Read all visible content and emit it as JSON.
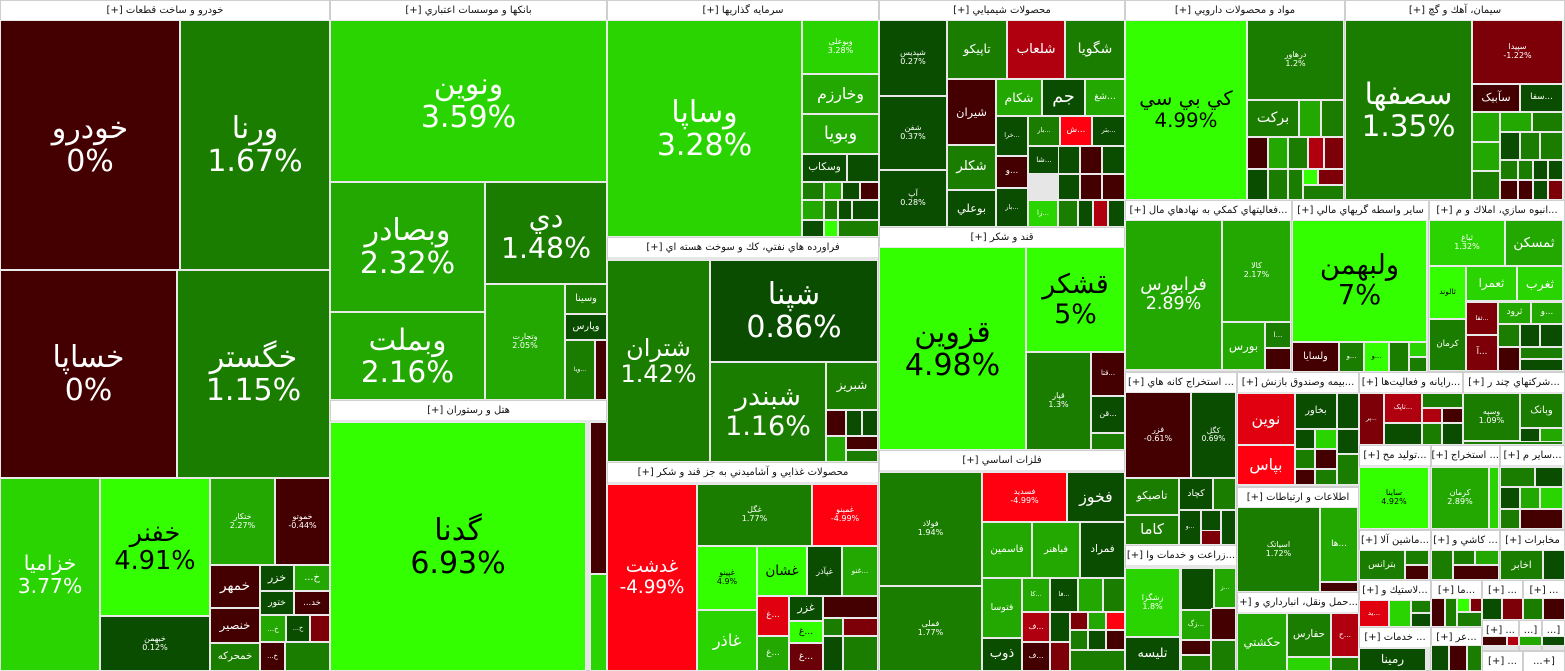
{
  "sectors": [
    {
      "title": "خودرو و ساخت قطعات [+]",
      "tiles": [
        {
          "name": "خودرو",
          "pct": "0%",
          "color": "#440000"
        },
        {
          "name": "ورنا",
          "pct": "1.67%",
          "color": "#1b7d00"
        },
        {
          "name": "خساپا",
          "pct": "0%",
          "color": "#440000"
        },
        {
          "name": "خگستر",
          "pct": "1.15%",
          "color": "#1b7d00"
        },
        {
          "name": "خزامیا",
          "pct": "3.77%",
          "color": "#2ad400"
        },
        {
          "name": "خفنر",
          "pct": "4.91%",
          "color": "#33ff00"
        },
        {
          "name": "خبهمن",
          "pct": "0.12%",
          "color": "#0a4d00"
        },
        {
          "name": "ختکار",
          "pct": "2.27%",
          "color": "#22a800"
        },
        {
          "name": "خموتو",
          "pct": "-0.44%",
          "color": "#440000"
        },
        {
          "name": "خمهر",
          "pct": "",
          "color": "#440000"
        },
        {
          "name": "خزر",
          "pct": "",
          "color": "#0a4d00"
        },
        {
          "name": "خ...",
          "pct": "",
          "color": "#22a800"
        },
        {
          "name": "ختور",
          "pct": "",
          "color": "#0a4d00"
        },
        {
          "name": "خد...",
          "pct": "",
          "color": "#440000"
        },
        {
          "name": "خنصیر",
          "pct": "",
          "color": "#440000"
        },
        {
          "name": "خ...",
          "pct": "",
          "color": "#22a800"
        },
        {
          "name": "خ...",
          "pct": "",
          "color": "#0a4d00"
        },
        {
          "name": "خمحرکه",
          "pct": "",
          "color": "#1b7d00"
        },
        {
          "name": "خ...",
          "pct": "",
          "color": "#440000"
        }
      ]
    },
    {
      "title": "بانکها و موسسات اعتباري [+]",
      "tiles": [
        {
          "name": "ونوین",
          "pct": "3.59%",
          "color": "#2ad400"
        },
        {
          "name": "وبصادر",
          "pct": "2.32%",
          "color": "#22a800"
        },
        {
          "name": "دي",
          "pct": "1.48%",
          "color": "#1b7d00"
        },
        {
          "name": "وبملت",
          "pct": "2.16%",
          "color": "#22a800"
        },
        {
          "name": "وتجارت",
          "pct": "2.05%",
          "color": "#22a800"
        },
        {
          "name": "وسینا",
          "pct": "",
          "color": "#1b7d00"
        },
        {
          "name": "وپارس",
          "pct": "",
          "color": "#0a4d00"
        },
        {
          "name": "...ویا",
          "pct": "",
          "color": "#1b7d00"
        }
      ]
    },
    {
      "title": "هتل و رستوران [+]",
      "tiles": [
        {
          "name": "گدنا",
          "pct": "6.93%",
          "color": "#33ff00"
        }
      ]
    },
    {
      "title": "سرمایه گذاریها [+]",
      "tiles": [
        {
          "name": "وساپا",
          "pct": "3.28%",
          "color": "#2ad400"
        },
        {
          "name": "وبوعلی",
          "pct": "3.28%",
          "color": "#2ad400"
        },
        {
          "name": "وخارزم",
          "pct": "",
          "color": "#22a800"
        },
        {
          "name": "وبویا",
          "pct": "",
          "color": "#22a800"
        },
        {
          "name": "وسکاب",
          "pct": "",
          "color": "#0a4d00"
        }
      ]
    },
    {
      "title": "فراورده هاي نفتي، كك و سوخت هسته اي [+]",
      "tiles": [
        {
          "name": "شتران",
          "pct": "1.42%",
          "color": "#1b7d00"
        },
        {
          "name": "شپنا",
          "pct": "0.86%",
          "color": "#0a4d00"
        },
        {
          "name": "شبندر",
          "pct": "1.16%",
          "color": "#1b7d00"
        },
        {
          "name": "شبریز",
          "pct": "",
          "color": "#1b7d00"
        }
      ]
    },
    {
      "title": "محصولات غذايي و آشاميدني به جز قند و شكر [+]",
      "tiles": [
        {
          "name": "غدشت",
          "pct": "-4.99%",
          "color": "#ff0010"
        },
        {
          "name": "غگل",
          "pct": "1.77%",
          "color": "#1b7d00"
        },
        {
          "name": "غمینو",
          "pct": "-4.99%",
          "color": "#ff0010"
        },
        {
          "name": "غپینو",
          "pct": "4.9%",
          "color": "#33ff00"
        },
        {
          "name": "غشان",
          "pct": "",
          "color": "#33ff00"
        },
        {
          "name": "غپآذر",
          "pct": "",
          "color": "#0a4d00"
        },
        {
          "name": "...غنو",
          "pct": "",
          "color": "#22a800"
        },
        {
          "name": "غاذر",
          "pct": "",
          "color": "#2ad400"
        },
        {
          "name": "...غ",
          "pct": "",
          "color": "#e00010"
        },
        {
          "name": "غزر",
          "pct": "",
          "color": "#0a4d00"
        },
        {
          "name": "...غ",
          "pct": "",
          "color": "#33ff00"
        },
        {
          "name": "...غ",
          "pct": "",
          "color": "#22a800"
        },
        {
          "name": "...غ",
          "pct": "",
          "color": "#6a0008"
        }
      ]
    },
    {
      "title": "محصولات شيميايي [+]",
      "tiles": [
        {
          "name": "شپدیس",
          "pct": "0.27%",
          "color": "#0a4d00"
        },
        {
          "name": "شفن",
          "pct": "0.37%",
          "color": "#0a4d00"
        },
        {
          "name": "آپ",
          "pct": "0.28%",
          "color": "#0a4d00"
        },
        {
          "name": "تاپیکو",
          "pct": "",
          "color": "#1b7d00"
        },
        {
          "name": "شلعاب",
          "pct": "",
          "color": "#b00010"
        },
        {
          "name": "شگویا",
          "pct": "",
          "color": "#1b7d00"
        },
        {
          "name": "شیران",
          "pct": "",
          "color": "#440000"
        },
        {
          "name": "شکام",
          "pct": "",
          "color": "#22a800"
        },
        {
          "name": "جم",
          "pct": "",
          "color": "#0a4d00"
        },
        {
          "name": "...شغ",
          "pct": "",
          "color": "#22a800"
        },
        {
          "name": "...خرا",
          "pct": "",
          "color": "#0a4d00"
        },
        {
          "name": "...بار",
          "pct": "",
          "color": "#1b7d00"
        },
        {
          "name": "...ش",
          "pct": "",
          "color": "#ff0010"
        },
        {
          "name": "...بتر",
          "pct": "",
          "color": "#0a4d00"
        },
        {
          "name": "شکلر",
          "pct": "",
          "color": "#1b7d00"
        },
        {
          "name": "...شا",
          "pct": "",
          "color": "#0a4d00"
        },
        {
          "name": "...و",
          "pct": "",
          "color": "#440000"
        },
        {
          "name": "بوعلي",
          "pct": "",
          "color": "#0a4d00"
        },
        {
          "name": "...بار",
          "pct": "",
          "color": "#0a4d00"
        },
        {
          "name": "...زا",
          "pct": "",
          "color": "#2ad400"
        }
      ]
    },
    {
      "title": "قند و شكر [+]",
      "tiles": [
        {
          "name": "قزوین",
          "pct": "4.98%",
          "color": "#33ff00"
        },
        {
          "name": "قشکر",
          "pct": "5%",
          "color": "#33ff00"
        },
        {
          "name": "قپار",
          "pct": "1.3%",
          "color": "#1b7d00"
        },
        {
          "name": "...قتا",
          "pct": "",
          "color": "#440000"
        },
        {
          "name": "...قن",
          "pct": "",
          "color": "#0a4d00"
        }
      ]
    },
    {
      "title": "فلزات اساسي [+]",
      "tiles": [
        {
          "name": "فولاد",
          "pct": "1.94%",
          "color": "#1b7d00"
        },
        {
          "name": "فملی",
          "pct": "1.77%",
          "color": "#1b7d00"
        },
        {
          "name": "فسدید",
          "pct": "-4.99%",
          "color": "#ff0010"
        },
        {
          "name": "فخوز",
          "pct": "",
          "color": "#0a4d00"
        },
        {
          "name": "فاسمین",
          "pct": "",
          "color": "#22a800"
        },
        {
          "name": "فباهنر",
          "pct": "",
          "color": "#22a800"
        },
        {
          "name": "فمراد",
          "pct": "",
          "color": "#0a4d00"
        },
        {
          "name": "فتوسا",
          "pct": "",
          "color": "#22a800"
        },
        {
          "name": "...کا",
          "pct": "",
          "color": "#22a800"
        },
        {
          "name": "...فا",
          "pct": "",
          "color": "#0a4d00"
        },
        {
          "name": "...ف",
          "pct": "",
          "color": "#b00010"
        },
        {
          "name": "ذوب",
          "pct": "",
          "color": "#0a4d00"
        },
        {
          "name": "...ف",
          "pct": "",
          "color": "#440000"
        }
      ]
    },
    {
      "title": "مواد و محصولات دارويي [+]",
      "tiles": [
        {
          "name": "كي بي سي",
          "pct": "4.99%",
          "color": "#33ff00"
        },
        {
          "name": "درهاور",
          "pct": "1.2%",
          "color": "#1b7d00"
        },
        {
          "name": "برکت",
          "pct": "",
          "color": "#1b7d00"
        }
      ]
    },
    {
      "title": "سيمان، آهك و گچ [+]",
      "tiles": [
        {
          "name": "سصفها",
          "pct": "1.35%",
          "color": "#1b7d00"
        },
        {
          "name": "سپیدا",
          "pct": "-1.22%",
          "color": "#7d0008"
        },
        {
          "name": "سآبیک",
          "pct": "",
          "color": "#440000"
        },
        {
          "name": "...سفا",
          "pct": "",
          "color": "#0a4d00"
        }
      ]
    },
    {
      "title": "...فعاليتهاي كمكي به نهادهاي مال [+]",
      "tiles": [
        {
          "name": "فرابورس",
          "pct": "2.89%",
          "color": "#22a800"
        },
        {
          "name": "کالا",
          "pct": "2.17%",
          "color": "#22a800"
        },
        {
          "name": "بورس",
          "pct": "",
          "color": "#22a800"
        },
        {
          "name": "...ا",
          "pct": "",
          "color": "#1b7d00"
        }
      ]
    },
    {
      "title": "ساير واسطه گريهاي مالي [+]",
      "tiles": [
        {
          "name": "ولبهمن",
          "pct": "7%",
          "color": "#33ff00"
        },
        {
          "name": "ولسایا",
          "pct": "",
          "color": "#440000"
        },
        {
          "name": "...و",
          "pct": "",
          "color": "#1b7d00"
        },
        {
          "name": "...و",
          "pct": "",
          "color": "#33ff00"
        }
      ]
    },
    {
      "title": "...انبوه سازي، املاك و م [+]",
      "tiles": [
        {
          "name": "ثباغ",
          "pct": "1.32%",
          "color": "#2ad400"
        },
        {
          "name": "ثمسکن",
          "pct": "",
          "color": "#22a800"
        },
        {
          "name": "ثالوند",
          "pct": "",
          "color": "#33ff00"
        },
        {
          "name": "ثعمرا",
          "pct": "",
          "color": "#2ad400"
        },
        {
          "name": "ثغرب",
          "pct": "",
          "color": "#2ad400"
        },
        {
          "name": "...ثفا",
          "pct": "",
          "color": "#7d0008"
        },
        {
          "name": "ثرود",
          "pct": "",
          "color": "#22a800"
        },
        {
          "name": "...و",
          "pct": "",
          "color": "#22a800"
        },
        {
          "name": "کرمان",
          "pct": "",
          "color": "#1b7d00"
        },
        {
          "name": "...آ",
          "pct": "",
          "color": "#7d0008"
        }
      ]
    },
    {
      "title": "... استخراج كانه هاي [+]",
      "tiles": [
        {
          "name": "فزر",
          "pct": "-0.61%",
          "color": "#440000"
        },
        {
          "name": "کگل",
          "pct": "0.69%",
          "color": "#0a4d00"
        },
        {
          "name": "تاصیکو",
          "pct": "",
          "color": "#1b7d00"
        },
        {
          "name": "کچاد",
          "pct": "",
          "color": "#0a4d00"
        },
        {
          "name": "کاما",
          "pct": "",
          "color": "#1b7d00"
        },
        {
          "name": "...و",
          "pct": "",
          "color": "#0a4d00"
        }
      ]
    },
    {
      "title": "...زراعت و خدمات وا [+]",
      "tiles": [
        {
          "name": "زشگزا",
          "pct": "1.8%",
          "color": "#2ad400"
        },
        {
          "name": "...ز",
          "pct": "",
          "color": "#22a800"
        },
        {
          "name": "...زگ",
          "pct": "",
          "color": "#22a800"
        },
        {
          "name": "تلیسه",
          "pct": "",
          "color": "#0a4d00"
        }
      ]
    },
    {
      "title": "...بيمه وصندوق بازنش [+]",
      "tiles": [
        {
          "name": "نوین",
          "pct": "",
          "color": "#e00010"
        },
        {
          "name": "بخاور",
          "pct": "",
          "color": "#0a4d00"
        },
        {
          "name": "بپاس",
          "pct": "",
          "color": "#ff0010"
        }
      ]
    },
    {
      "title": "اطلاعات و ارتباطات [+]",
      "tiles": [
        {
          "name": "اسیاتک",
          "pct": "1.72%",
          "color": "#1b7d00"
        },
        {
          "name": "...ها",
          "pct": "",
          "color": "#22a800"
        }
      ]
    },
    {
      "title": "...حمل ونقل، انبارداري و [+]",
      "tiles": [
        {
          "name": "حکشتي",
          "pct": "",
          "color": "#22a800"
        },
        {
          "name": "حفارس",
          "pct": "",
          "color": "#1b7d00"
        },
        {
          "name": "...ح",
          "pct": "",
          "color": "#b00010"
        }
      ]
    },
    {
      "title": "...رايانه و فعاليت‌ها [+]",
      "tiles": [
        {
          "name": "...پر",
          "pct": "",
          "color": "#7d0008"
        },
        {
          "name": "...تاپک",
          "pct": "",
          "color": "#b00010"
        }
      ]
    },
    {
      "title": "...شركتهاي چند ر [+]",
      "tiles": [
        {
          "name": "وسپه",
          "pct": "1.09%",
          "color": "#1b7d00"
        },
        {
          "name": "وبانک",
          "pct": "",
          "color": "#1b7d00"
        }
      ]
    },
    {
      "title": "...توليد مح [+]",
      "tiles": [
        {
          "name": "ساینا",
          "pct": "4.92%",
          "color": "#33ff00"
        }
      ]
    },
    {
      "title": "... استخراج [+]",
      "tiles": [
        {
          "name": "کرمان",
          "pct": "2.89%",
          "color": "#22a800"
        }
      ]
    },
    {
      "title": "...ساير م [+]",
      "tiles": []
    },
    {
      "title": "...ماشين آلا [+]",
      "tiles": [
        {
          "name": "بترانس",
          "pct": "",
          "color": "#1b7d00"
        }
      ]
    },
    {
      "title": "... كاشي و [+]",
      "tiles": []
    },
    {
      "title": "مخابرات [+]",
      "tiles": [
        {
          "name": "اخابر",
          "pct": "",
          "color": "#1b7d00"
        }
      ]
    },
    {
      "title": "...لاستيك و [+]",
      "tiles": [
        {
          "name": "...ید",
          "pct": "",
          "color": "#e00010"
        }
      ]
    },
    {
      "title": "... خدمات [+]",
      "tiles": [
        {
          "name": "رمینا",
          "pct": "",
          "color": "#0a4d00"
        }
      ]
    },
    {
      "title": "...ما [+]",
      "tiles": []
    },
    {
      "title": "... [+]",
      "tiles": []
    },
    {
      "title": "... [+]",
      "tiles": []
    },
    {
      "title": "...عر [+]",
      "tiles": []
    },
    {
      "title": "... [+]",
      "tiles": []
    },
    {
      "title": "[...",
      "tiles": []
    },
    {
      "title": "[...",
      "tiles": []
    },
    {
      "title": "... [+]",
      "tiles": []
    },
    {
      "title": "[+...",
      "tiles": []
    }
  ]
}
